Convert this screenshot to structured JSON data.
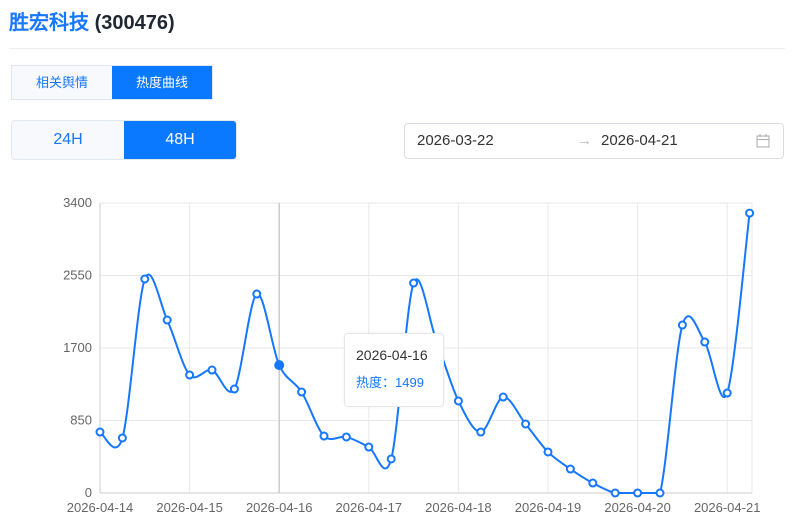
{
  "header": {
    "name": "胜宏科技",
    "code": "(300476)"
  },
  "tabs": [
    {
      "label": "相关舆情",
      "active": false
    },
    {
      "label": "热度曲线",
      "active": true
    }
  ],
  "periods": [
    {
      "label": "24H",
      "active": false
    },
    {
      "label": "48H",
      "active": true
    }
  ],
  "date_range": {
    "start": "2026-03-22",
    "separator": "→",
    "end": "2026-04-21",
    "icon": "calendar-icon"
  },
  "tooltip": {
    "date": "2026-04-16",
    "label": "热度：",
    "value": "1499"
  },
  "colors": {
    "accent": "#0a78ff",
    "line": "#1677ff"
  },
  "chart_data": {
    "type": "line",
    "smooth": true,
    "ylim": [
      0,
      3400
    ],
    "yticks": [
      "0",
      "850",
      "1700",
      "2550",
      "3400"
    ],
    "xticks": [
      "2026-04-14",
      "2026-04-15",
      "2026-04-16",
      "2026-04-17",
      "2026-04-18",
      "2026-04-19",
      "2026-04-20",
      "2026-04-21"
    ],
    "points_per_tick": 4,
    "grid": true,
    "highlight_index": 8,
    "series": [
      {
        "name": "热度",
        "values": [
          715,
          645,
          2509,
          2028,
          1383,
          1442,
          1219,
          2333,
          1499,
          1184,
          668,
          657,
          539,
          399,
          2462,
          1800,
          1079,
          715,
          1125,
          809,
          481,
          281,
          117,
          0,
          0,
          0,
          1969,
          1770,
          1172,
          3282
        ]
      }
    ]
  }
}
